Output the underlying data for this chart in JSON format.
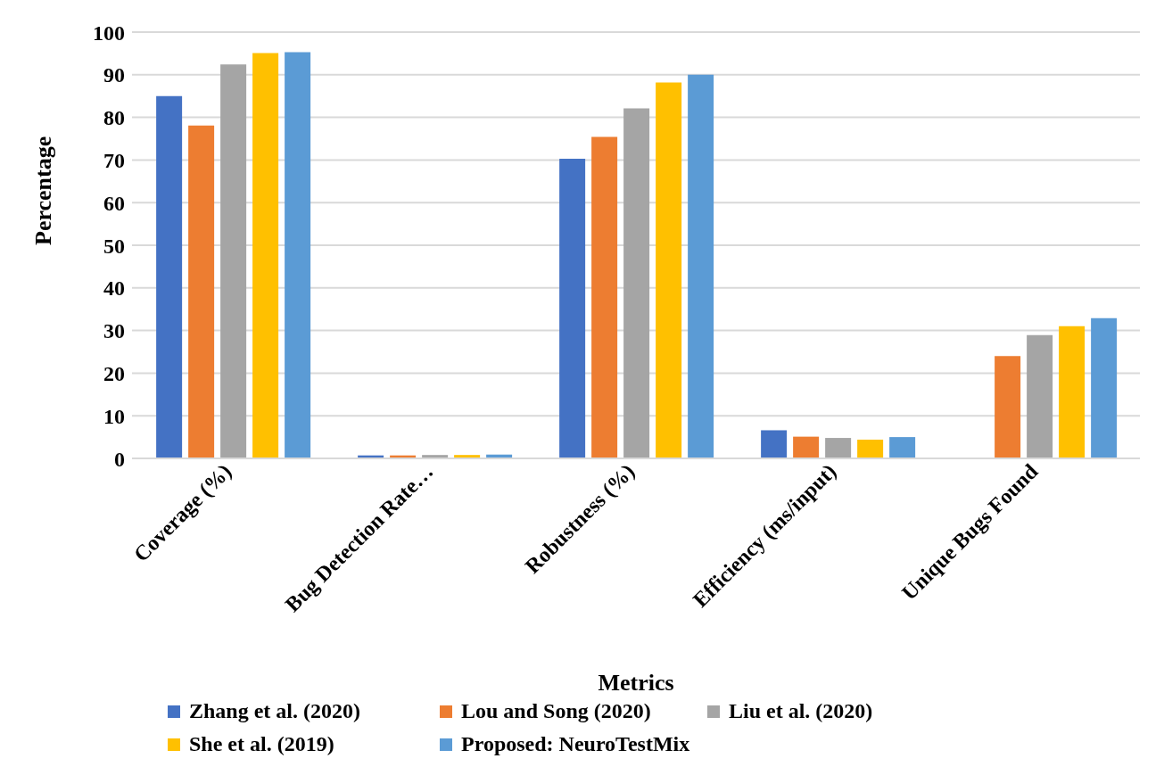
{
  "chart_data": {
    "type": "bar",
    "xlabel": "Metrics",
    "ylabel": "Percentage",
    "categories": [
      "Coverage (%)",
      "Bug Detection Rate…",
      "Robustness (%)",
      "Efficiency (ms/input)",
      "Unique Bugs Found"
    ],
    "series": [
      {
        "name": "Zhang et al. (2020)",
        "color": "#4472c4",
        "values": [
          85,
          0.7,
          70.3,
          6.6,
          null
        ]
      },
      {
        "name": "Lou and Song (2020)",
        "color": "#ed7d31",
        "values": [
          78.1,
          0.7,
          75.4,
          5.1,
          24
        ]
      },
      {
        "name": "Liu et al. (2020)",
        "color": "#a5a5a5",
        "values": [
          92.4,
          0.8,
          82.1,
          4.8,
          28.9
        ]
      },
      {
        "name": "She et al. (2019)",
        "color": "#ffc000",
        "values": [
          95.1,
          0.8,
          88.2,
          4.4,
          31
        ]
      },
      {
        "name": "Proposed: NeuroTestMix",
        "color": "#5b9bd5",
        "values": [
          95.3,
          0.9,
          90,
          5,
          32.9
        ]
      }
    ],
    "ylim": [
      0,
      100
    ],
    "yticks": [
      0,
      10,
      20,
      30,
      40,
      50,
      60,
      70,
      80,
      90,
      100
    ],
    "grid": "y",
    "legend": "bottom"
  }
}
